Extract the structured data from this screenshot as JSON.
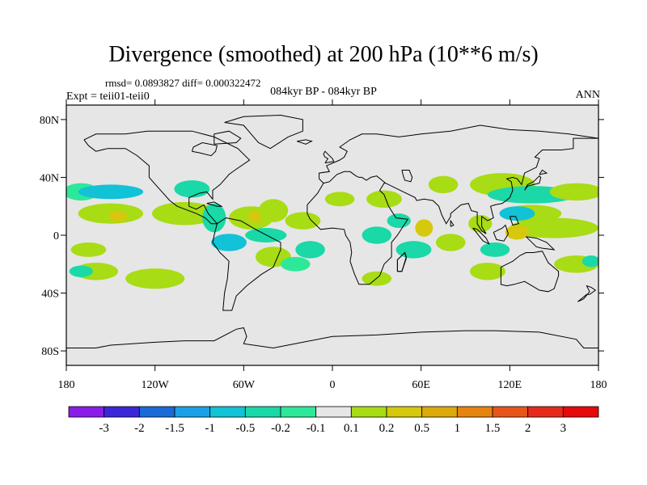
{
  "title": "Divergence (smoothed) at 200 hPa (10**6 m/s)",
  "stats_line": "rmsd= 0.0893827 diff= 0.000322472",
  "experiment_line": "Expt = teii01-teii0",
  "period_line": "084kyr BP - 084kyr BP",
  "season": "ANN",
  "colors": {
    "land_background": "#e6e6e6",
    "coastline": "#000000"
  },
  "chart_data": {
    "type": "heatmap",
    "map": "global cylindrical equidistant map with coastlines",
    "x_ticks": [
      "180",
      "120W",
      "60W",
      "0",
      "60E",
      "120E",
      "180"
    ],
    "x_tick_values": [
      -180,
      -120,
      -60,
      0,
      60,
      120,
      180
    ],
    "y_ticks": [
      "80N",
      "40N",
      "0",
      "40S",
      "80S"
    ],
    "y_tick_values": [
      80,
      40,
      0,
      -40,
      -80
    ],
    "xlim": [
      -180,
      180
    ],
    "ylim": [
      -90,
      90
    ],
    "colorbar": {
      "labels": [
        "-3",
        "-2",
        "-1.5",
        "-1",
        "-0.5",
        "-0.2",
        "-0.1",
        "0.1",
        "0.2",
        "0.5",
        "1",
        "1.5",
        "2",
        "3"
      ],
      "colors": [
        "#8a1ee6",
        "#3a28d8",
        "#1a6ad8",
        "#1aa0e6",
        "#12c2d6",
        "#1ad8a8",
        "#2ee89a",
        "#e6e6e6",
        "#a8dc14",
        "#d6c80c",
        "#dcaa0a",
        "#e68410",
        "#e6561a",
        "#e62a1a",
        "#e60a0a"
      ]
    },
    "regions": [
      {
        "level": "-0.1",
        "color": "#2ee89a",
        "center": [
          -170,
          30
        ],
        "radius": [
          12,
          6
        ]
      },
      {
        "level": "-0.5",
        "color": "#12c2d6",
        "center": [
          -150,
          30
        ],
        "radius": [
          22,
          5
        ]
      },
      {
        "level": "0.1",
        "color": "#a8dc14",
        "center": [
          -150,
          15
        ],
        "radius": [
          22,
          7
        ]
      },
      {
        "level": "0.5",
        "color": "#d6c80c",
        "center": [
          -145,
          13
        ],
        "radius": [
          6,
          4
        ]
      },
      {
        "level": "0.1",
        "color": "#a8dc14",
        "center": [
          -100,
          15
        ],
        "radius": [
          22,
          8
        ]
      },
      {
        "level": "-0.2",
        "color": "#1ad8a8",
        "center": [
          -95,
          32
        ],
        "radius": [
          12,
          6
        ]
      },
      {
        "level": "-0.2",
        "color": "#1ad8a8",
        "center": [
          -80,
          12
        ],
        "radius": [
          8,
          10
        ]
      },
      {
        "level": "0.1",
        "color": "#a8dc14",
        "center": [
          -55,
          12
        ],
        "radius": [
          15,
          8
        ]
      },
      {
        "level": "0.5",
        "color": "#d6c80c",
        "center": [
          -52,
          13
        ],
        "radius": [
          5,
          4
        ]
      },
      {
        "level": "-0.5",
        "color": "#12c2d6",
        "center": [
          -70,
          -5
        ],
        "radius": [
          12,
          6
        ]
      },
      {
        "level": "-0.2",
        "color": "#1ad8a8",
        "center": [
          -45,
          0
        ],
        "radius": [
          14,
          5
        ]
      },
      {
        "level": "0.1",
        "color": "#a8dc14",
        "center": [
          -40,
          17
        ],
        "radius": [
          10,
          8
        ]
      },
      {
        "level": "0.1",
        "color": "#a8dc14",
        "center": [
          -20,
          10
        ],
        "radius": [
          12,
          6
        ]
      },
      {
        "level": "-0.2",
        "color": "#1ad8a8",
        "center": [
          -15,
          -10
        ],
        "radius": [
          10,
          6
        ]
      },
      {
        "level": "0.1",
        "color": "#a8dc14",
        "center": [
          -40,
          -15
        ],
        "radius": [
          12,
          7
        ]
      },
      {
        "level": "-0.1",
        "color": "#2ee89a",
        "center": [
          -25,
          -20
        ],
        "radius": [
          10,
          5
        ]
      },
      {
        "level": "0.1",
        "color": "#a8dc14",
        "center": [
          -165,
          -10
        ],
        "radius": [
          12,
          5
        ]
      },
      {
        "level": "0.1",
        "color": "#a8dc14",
        "center": [
          -160,
          -25
        ],
        "radius": [
          15,
          6
        ]
      },
      {
        "level": "-0.2",
        "color": "#1ad8a8",
        "center": [
          -170,
          -25
        ],
        "radius": [
          8,
          4
        ]
      },
      {
        "level": "0.1",
        "color": "#a8dc14",
        "center": [
          -120,
          -30
        ],
        "radius": [
          20,
          7
        ]
      },
      {
        "level": "0.1",
        "color": "#a8dc14",
        "center": [
          5,
          25
        ],
        "radius": [
          10,
          5
        ]
      },
      {
        "level": "-0.2",
        "color": "#1ad8a8",
        "center": [
          30,
          0
        ],
        "radius": [
          10,
          6
        ]
      },
      {
        "level": "0.1",
        "color": "#a8dc14",
        "center": [
          35,
          25
        ],
        "radius": [
          12,
          6
        ]
      },
      {
        "level": "-0.2",
        "color": "#1ad8a8",
        "center": [
          45,
          10
        ],
        "radius": [
          8,
          5
        ]
      },
      {
        "level": "-0.2",
        "color": "#1ad8a8",
        "center": [
          55,
          -10
        ],
        "radius": [
          12,
          6
        ]
      },
      {
        "level": "0.5",
        "color": "#d6c80c",
        "center": [
          62,
          5
        ],
        "radius": [
          6,
          6
        ]
      },
      {
        "level": "0.1",
        "color": "#a8dc14",
        "center": [
          30,
          -30
        ],
        "radius": [
          10,
          5
        ]
      },
      {
        "level": "0.1",
        "color": "#a8dc14",
        "center": [
          80,
          -5
        ],
        "radius": [
          10,
          6
        ]
      },
      {
        "level": "0.1",
        "color": "#a8dc14",
        "center": [
          105,
          -25
        ],
        "radius": [
          12,
          6
        ]
      },
      {
        "level": "0.1",
        "color": "#a8dc14",
        "center": [
          75,
          35
        ],
        "radius": [
          10,
          6
        ]
      },
      {
        "level": "0.1",
        "color": "#a8dc14",
        "center": [
          115,
          35
        ],
        "radius": [
          22,
          8
        ]
      },
      {
        "level": "-0.2",
        "color": "#1ad8a8",
        "center": [
          135,
          28
        ],
        "radius": [
          30,
          6
        ]
      },
      {
        "level": "0.1",
        "color": "#a8dc14",
        "center": [
          165,
          30
        ],
        "radius": [
          18,
          6
        ]
      },
      {
        "level": "0.1",
        "color": "#a8dc14",
        "center": [
          135,
          15
        ],
        "radius": [
          20,
          6
        ]
      },
      {
        "level": "-0.5",
        "color": "#12c2d6",
        "center": [
          125,
          15
        ],
        "radius": [
          12,
          5
        ]
      },
      {
        "level": "0.1",
        "color": "#a8dc14",
        "center": [
          150,
          5
        ],
        "radius": [
          30,
          7
        ]
      },
      {
        "level": "0.5",
        "color": "#d6c80c",
        "center": [
          125,
          2
        ],
        "radius": [
          8,
          5
        ]
      },
      {
        "level": "-0.2",
        "color": "#1ad8a8",
        "center": [
          110,
          -10
        ],
        "radius": [
          10,
          5
        ]
      },
      {
        "level": "0.1",
        "color": "#a8dc14",
        "center": [
          165,
          -20
        ],
        "radius": [
          15,
          6
        ]
      },
      {
        "level": "-0.2",
        "color": "#1ad8a8",
        "center": [
          175,
          -18
        ],
        "radius": [
          6,
          4
        ]
      },
      {
        "level": "0.1",
        "color": "#a8dc14",
        "center": [
          100,
          8
        ],
        "radius": [
          8,
          6
        ]
      }
    ]
  }
}
